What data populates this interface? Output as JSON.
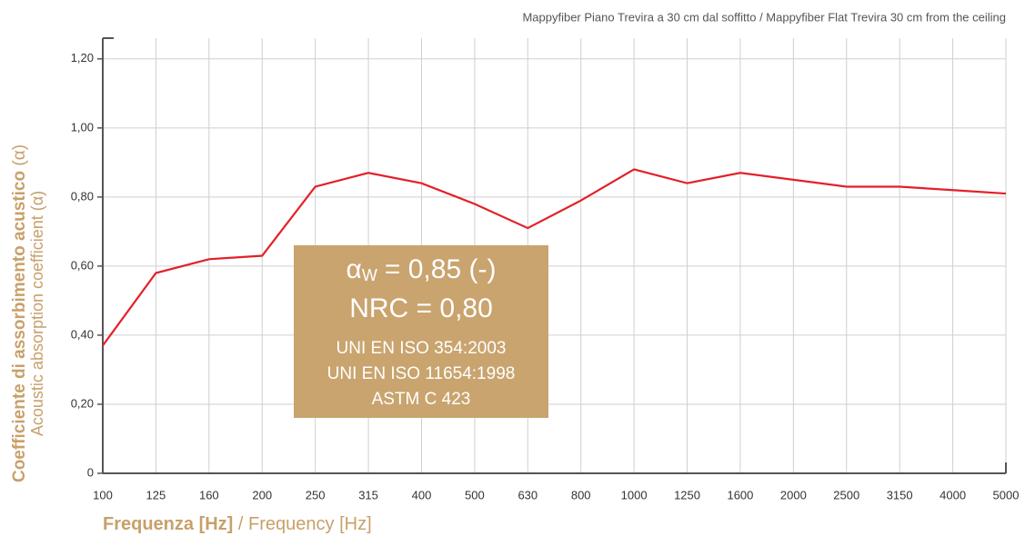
{
  "chart_data": {
    "type": "line",
    "title": "Mappyfiber Piano Trevira a 30 cm dal soffitto / Mappyfiber Flat Trevira 30 cm from the ceiling",
    "xlabel": {
      "bold": "Frequenza [Hz]",
      "rest": "/ Frequency [Hz]"
    },
    "ylabel": {
      "bold": "Coefficiente di assorbimento acustico",
      "rest": "(α)",
      "line2": "Acoustic absorption coefficient (α)"
    },
    "categories": [
      "100",
      "125",
      "160",
      "200",
      "250",
      "315",
      "400",
      "500",
      "630",
      "800",
      "1000",
      "1250",
      "1600",
      "2000",
      "2500",
      "3150",
      "4000",
      "5000"
    ],
    "series": [
      {
        "name": "Mappyfiber",
        "color": "#e32028",
        "values": [
          0.37,
          0.58,
          0.62,
          0.63,
          0.83,
          0.87,
          0.84,
          0.78,
          0.71,
          0.79,
          0.88,
          0.84,
          0.87,
          0.85,
          0.83,
          0.83,
          0.82,
          0.81
        ]
      }
    ],
    "ylim": [
      0,
      1.26
    ],
    "yticks": [
      0,
      {
        "value": 0.2,
        "label": "0,20"
      },
      {
        "value": 0.4,
        "label": "0,40"
      },
      {
        "value": 0.6,
        "label": "0,60"
      },
      {
        "value": 0.8,
        "label": "0,80"
      },
      {
        "value": 1.0,
        "label": "1,00"
      },
      {
        "value": 1.2,
        "label": "1,20"
      }
    ],
    "grid": true,
    "annotation": {
      "symbol": "α",
      "subscript": "W",
      "alpha_text": "= 0,85 (-)",
      "lines": [
        "NRC = 0,80",
        "UNI EN ISO 354:2003",
        "UNI EN ISO 11654:1998",
        "ASTM C 423"
      ],
      "color": "#c9a46e"
    }
  }
}
